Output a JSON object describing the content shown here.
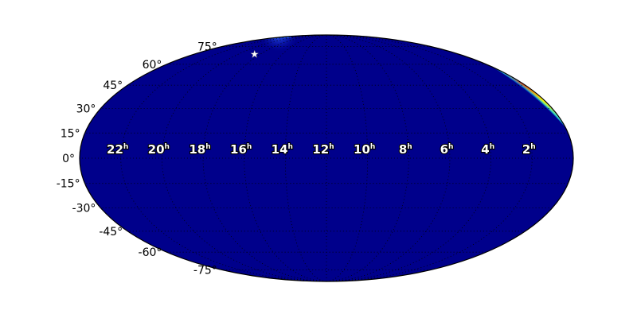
{
  "chart_data": {
    "type": "heatmap",
    "projection": "mollweide",
    "grid": true,
    "colors": {
      "background": "#00008b",
      "grid": "#000000",
      "hot": [
        "#1e5cff",
        "#00e0ff",
        "#ffff00",
        "#ff2000"
      ],
      "marker": "#ffffff"
    },
    "ra_ticks": [
      {
        "hours": 22,
        "label": "22",
        "unit": "h"
      },
      {
        "hours": 20,
        "label": "20",
        "unit": "h"
      },
      {
        "hours": 18,
        "label": "18",
        "unit": "h"
      },
      {
        "hours": 16,
        "label": "16",
        "unit": "h"
      },
      {
        "hours": 14,
        "label": "14",
        "unit": "h"
      },
      {
        "hours": 12,
        "label": "12",
        "unit": "h"
      },
      {
        "hours": 10,
        "label": "10",
        "unit": "h"
      },
      {
        "hours": 8,
        "label": "8",
        "unit": "h"
      },
      {
        "hours": 6,
        "label": "6",
        "unit": "h"
      },
      {
        "hours": 4,
        "label": "4",
        "unit": "h"
      },
      {
        "hours": 2,
        "label": "2",
        "unit": "h"
      }
    ],
    "dec_ticks": [
      {
        "deg": 75,
        "label": "75°"
      },
      {
        "deg": 60,
        "label": "60°"
      },
      {
        "deg": 45,
        "label": "45°"
      },
      {
        "deg": 30,
        "label": "30°"
      },
      {
        "deg": 15,
        "label": "15°"
      },
      {
        "deg": 0,
        "label": "0°"
      },
      {
        "deg": -15,
        "label": "-15°"
      },
      {
        "deg": -30,
        "label": "-30°"
      },
      {
        "deg": -45,
        "label": "-45°"
      },
      {
        "deg": -60,
        "label": "-60°"
      },
      {
        "deg": -75,
        "label": "-75°"
      }
    ],
    "marker": {
      "type": "star",
      "ra_hours": 18.5,
      "dec_deg": 68
    }
  }
}
